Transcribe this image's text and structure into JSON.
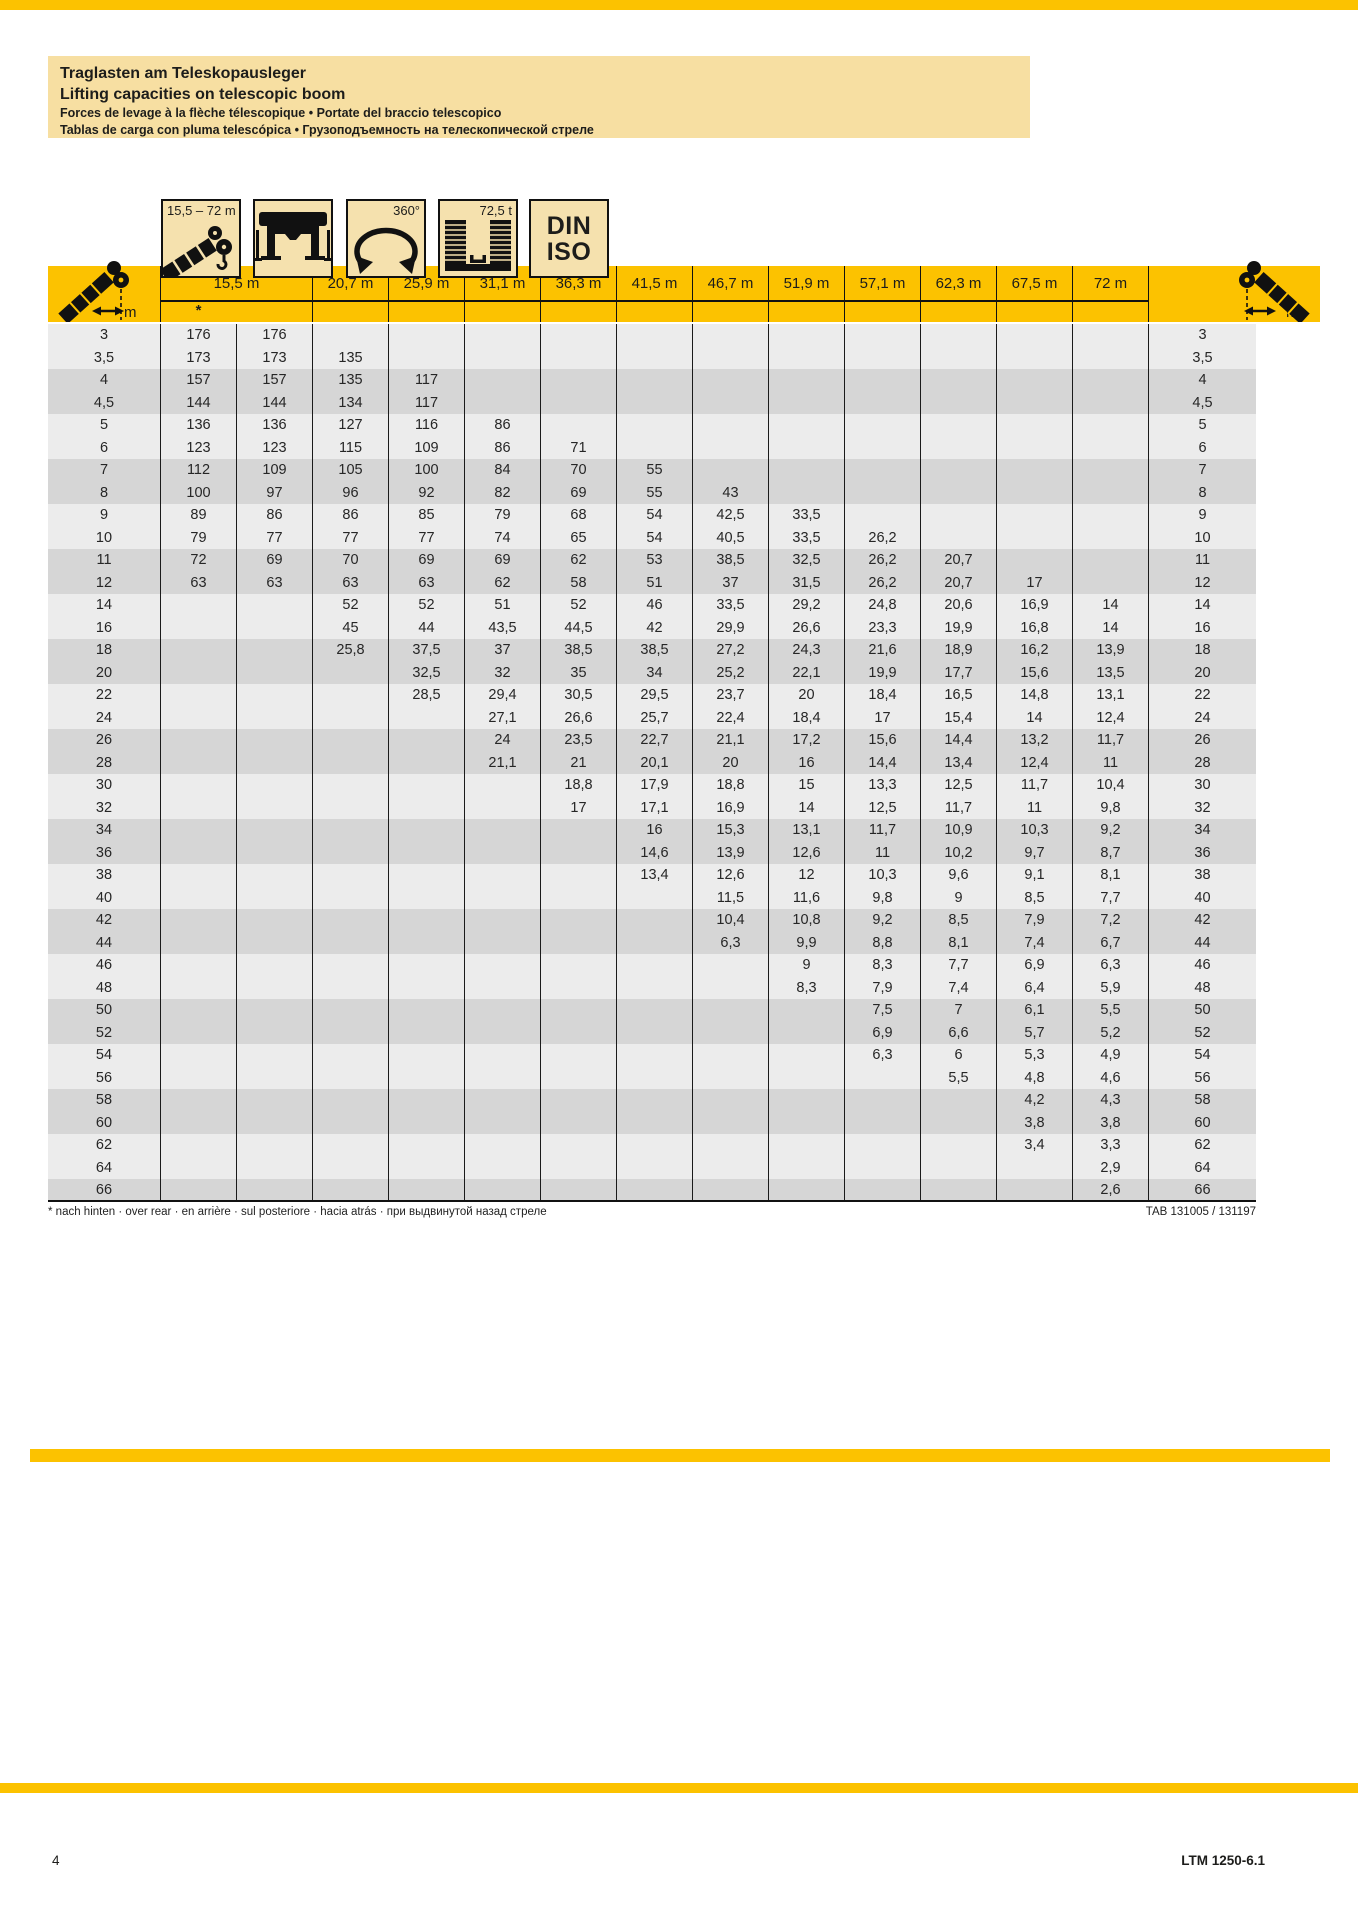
{
  "header": {
    "title_de": "Traglasten am Teleskopausleger",
    "title_en": "Lifting capacities on telescopic boom",
    "title_fr_it": "Forces de levage à la flèche télescopique • Portate del braccio telescopico",
    "title_es_ru": "Tablas de carga con pluma telescópica • Грузоподъемность на телескопической стреле"
  },
  "icon_legend": {
    "boom_range": "15,5 – 72 m",
    "slew": "360°",
    "counterweight": "72,5 t",
    "standard": [
      "DIN",
      "ISO"
    ]
  },
  "table": {
    "radius_unit": "m",
    "over_rear_marker": "*",
    "columns": [
      "15,5 m",
      "20,7 m",
      "25,9 m",
      "31,1 m",
      "36,3 m",
      "41,5 m",
      "46,7 m",
      "51,9 m",
      "57,1 m",
      "62,3 m",
      "67,5 m",
      "72 m"
    ]
  },
  "chart_data": {
    "type": "table",
    "title": "Traglasten am Teleskopausleger / Lifting capacities on telescopic boom",
    "x_label": "Radius (m)",
    "value_unit": "t",
    "boom_lengths_m": [
      "15,5 *",
      "15,5",
      "20,7",
      "25,9",
      "31,1",
      "36,3",
      "41,5",
      "46,7",
      "51,9",
      "57,1",
      "62,3",
      "67,5",
      "72"
    ],
    "radii_m": [
      "3",
      "3,5",
      "4",
      "4,5",
      "5",
      "6",
      "7",
      "8",
      "9",
      "10",
      "11",
      "12",
      "14",
      "16",
      "18",
      "20",
      "22",
      "24",
      "26",
      "28",
      "30",
      "32",
      "34",
      "36",
      "38",
      "40",
      "42",
      "44",
      "46",
      "48",
      "50",
      "52",
      "54",
      "56",
      "58",
      "60",
      "62",
      "64",
      "66"
    ],
    "capacities_t": [
      [
        "176",
        "176",
        "",
        "",
        "",
        "",
        "",
        "",
        "",
        "",
        "",
        "",
        ""
      ],
      [
        "173",
        "173",
        "135",
        "",
        "",
        "",
        "",
        "",
        "",
        "",
        "",
        "",
        ""
      ],
      [
        "157",
        "157",
        "135",
        "117",
        "",
        "",
        "",
        "",
        "",
        "",
        "",
        "",
        ""
      ],
      [
        "144",
        "144",
        "134",
        "117",
        "",
        "",
        "",
        "",
        "",
        "",
        "",
        "",
        ""
      ],
      [
        "136",
        "136",
        "127",
        "116",
        "86",
        "",
        "",
        "",
        "",
        "",
        "",
        "",
        ""
      ],
      [
        "123",
        "123",
        "115",
        "109",
        "86",
        "71",
        "",
        "",
        "",
        "",
        "",
        "",
        ""
      ],
      [
        "112",
        "109",
        "105",
        "100",
        "84",
        "70",
        "55",
        "",
        "",
        "",
        "",
        "",
        ""
      ],
      [
        "100",
        "97",
        "96",
        "92",
        "82",
        "69",
        "55",
        "43",
        "",
        "",
        "",
        "",
        ""
      ],
      [
        "89",
        "86",
        "86",
        "85",
        "79",
        "68",
        "54",
        "42,5",
        "33,5",
        "",
        "",
        "",
        ""
      ],
      [
        "79",
        "77",
        "77",
        "77",
        "74",
        "65",
        "54",
        "40,5",
        "33,5",
        "26,2",
        "",
        "",
        ""
      ],
      [
        "72",
        "69",
        "70",
        "69",
        "69",
        "62",
        "53",
        "38,5",
        "32,5",
        "26,2",
        "20,7",
        "",
        ""
      ],
      [
        "63",
        "63",
        "63",
        "63",
        "62",
        "58",
        "51",
        "37",
        "31,5",
        "26,2",
        "20,7",
        "17",
        ""
      ],
      [
        "",
        "",
        "52",
        "52",
        "51",
        "52",
        "46",
        "33,5",
        "29,2",
        "24,8",
        "20,6",
        "16,9",
        "14"
      ],
      [
        "",
        "",
        "45",
        "44",
        "43,5",
        "44,5",
        "42",
        "29,9",
        "26,6",
        "23,3",
        "19,9",
        "16,8",
        "14"
      ],
      [
        "",
        "",
        "25,8",
        "37,5",
        "37",
        "38,5",
        "38,5",
        "27,2",
        "24,3",
        "21,6",
        "18,9",
        "16,2",
        "13,9"
      ],
      [
        "",
        "",
        "",
        "32,5",
        "32",
        "35",
        "34",
        "25,2",
        "22,1",
        "19,9",
        "17,7",
        "15,6",
        "13,5"
      ],
      [
        "",
        "",
        "",
        "28,5",
        "29,4",
        "30,5",
        "29,5",
        "23,7",
        "20",
        "18,4",
        "16,5",
        "14,8",
        "13,1"
      ],
      [
        "",
        "",
        "",
        "",
        "27,1",
        "26,6",
        "25,7",
        "22,4",
        "18,4",
        "17",
        "15,4",
        "14",
        "12,4"
      ],
      [
        "",
        "",
        "",
        "",
        "24",
        "23,5",
        "22,7",
        "21,1",
        "17,2",
        "15,6",
        "14,4",
        "13,2",
        "11,7"
      ],
      [
        "",
        "",
        "",
        "",
        "21,1",
        "21",
        "20,1",
        "20",
        "16",
        "14,4",
        "13,4",
        "12,4",
        "11"
      ],
      [
        "",
        "",
        "",
        "",
        "",
        "18,8",
        "17,9",
        "18,8",
        "15",
        "13,3",
        "12,5",
        "11,7",
        "10,4"
      ],
      [
        "",
        "",
        "",
        "",
        "",
        "17",
        "17,1",
        "16,9",
        "14",
        "12,5",
        "11,7",
        "11",
        "9,8"
      ],
      [
        "",
        "",
        "",
        "",
        "",
        "",
        "16",
        "15,3",
        "13,1",
        "11,7",
        "10,9",
        "10,3",
        "9,2"
      ],
      [
        "",
        "",
        "",
        "",
        "",
        "",
        "14,6",
        "13,9",
        "12,6",
        "11",
        "10,2",
        "9,7",
        "8,7"
      ],
      [
        "",
        "",
        "",
        "",
        "",
        "",
        "13,4",
        "12,6",
        "12",
        "10,3",
        "9,6",
        "9,1",
        "8,1"
      ],
      [
        "",
        "",
        "",
        "",
        "",
        "",
        "",
        "11,5",
        "11,6",
        "9,8",
        "9",
        "8,5",
        "7,7"
      ],
      [
        "",
        "",
        "",
        "",
        "",
        "",
        "",
        "10,4",
        "10,8",
        "9,2",
        "8,5",
        "7,9",
        "7,2"
      ],
      [
        "",
        "",
        "",
        "",
        "",
        "",
        "",
        "6,3",
        "9,9",
        "8,8",
        "8,1",
        "7,4",
        "6,7"
      ],
      [
        "",
        "",
        "",
        "",
        "",
        "",
        "",
        "",
        "9",
        "8,3",
        "7,7",
        "6,9",
        "6,3"
      ],
      [
        "",
        "",
        "",
        "",
        "",
        "",
        "",
        "",
        "8,3",
        "7,9",
        "7,4",
        "6,4",
        "5,9"
      ],
      [
        "",
        "",
        "",
        "",
        "",
        "",
        "",
        "",
        "",
        "7,5",
        "7",
        "6,1",
        "5,5"
      ],
      [
        "",
        "",
        "",
        "",
        "",
        "",
        "",
        "",
        "",
        "6,9",
        "6,6",
        "5,7",
        "5,2"
      ],
      [
        "",
        "",
        "",
        "",
        "",
        "",
        "",
        "",
        "",
        "6,3",
        "6",
        "5,3",
        "4,9"
      ],
      [
        "",
        "",
        "",
        "",
        "",
        "",
        "",
        "",
        "",
        "",
        "5,5",
        "4,8",
        "4,6"
      ],
      [
        "",
        "",
        "",
        "",
        "",
        "",
        "",
        "",
        "",
        "",
        "",
        "4,2",
        "4,3"
      ],
      [
        "",
        "",
        "",
        "",
        "",
        "",
        "",
        "",
        "",
        "",
        "",
        "3,8",
        "3,8"
      ],
      [
        "",
        "",
        "",
        "",
        "",
        "",
        "",
        "",
        "",
        "",
        "",
        "3,4",
        "3,3"
      ],
      [
        "",
        "",
        "",
        "",
        "",
        "",
        "",
        "",
        "",
        "",
        "",
        "",
        "2,9"
      ],
      [
        "",
        "",
        "",
        "",
        "",
        "",
        "",
        "",
        "",
        "",
        "",
        "",
        "2,6"
      ]
    ]
  },
  "footnote": {
    "left": "* nach hinten · over rear · en arrière · sul posteriore · hacia atrás · при выдвинутой назад стреле",
    "right": "TAB 131005 / 131197"
  },
  "footer": {
    "page_number": "4",
    "model": "LTM 1250-6.1"
  }
}
